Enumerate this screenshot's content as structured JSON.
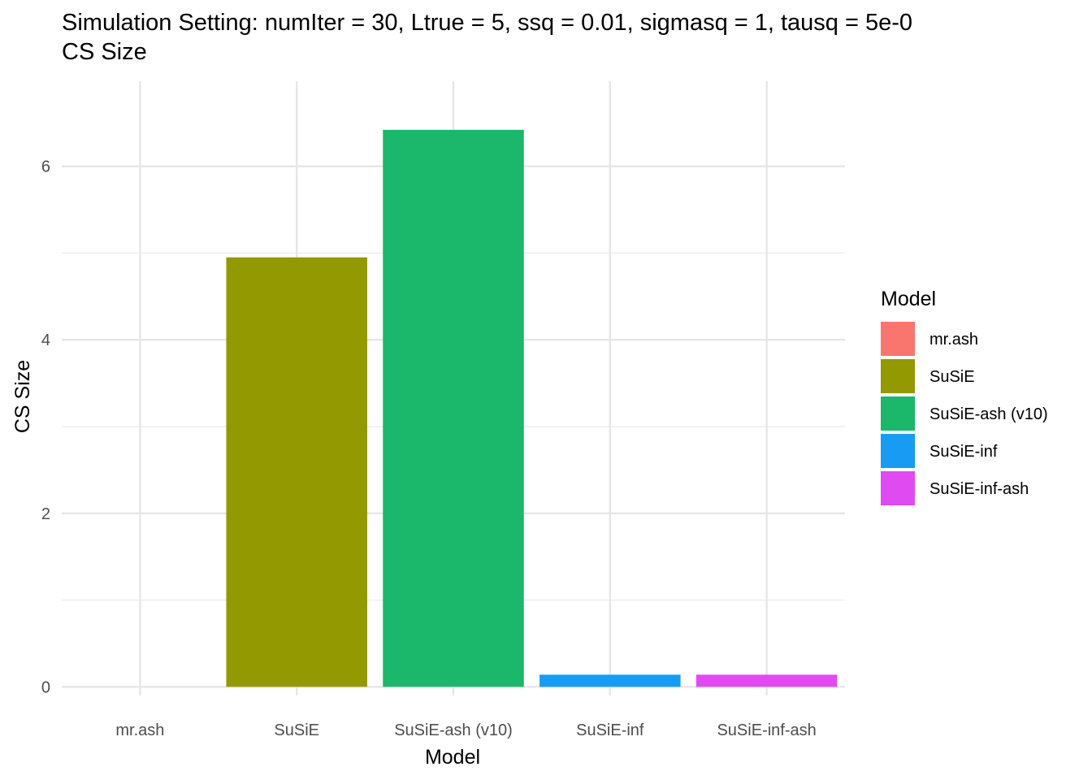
{
  "chart_data": {
    "type": "bar",
    "title": "Simulation Setting: numIter = 30, Ltrue = 5, ssq = 0.01, sigmasq = 1, tausq = 5e-0",
    "subtitle": "CS Size",
    "xlabel": "Model",
    "ylabel": "CS Size",
    "categories": [
      "mr.ash",
      "SuSiE",
      "SuSiE-ash (v10)",
      "SuSiE-inf",
      "SuSiE-inf-ash"
    ],
    "values": [
      0,
      4.95,
      6.42,
      0.14,
      0.14
    ],
    "colors": [
      "#F8766D",
      "#939900",
      "#1BB76A",
      "#169CF3",
      "#DF4BF0"
    ],
    "ylim": [
      -0.1,
      6.98
    ],
    "yticks": [
      0,
      2,
      4,
      6
    ],
    "ytick_labels": [
      "0",
      "2",
      "4",
      "6"
    ],
    "grid": true,
    "legend": {
      "title": "Model",
      "placement": "right",
      "entries": [
        "mr.ash",
        "SuSiE",
        "SuSiE-ash (v10)",
        "SuSiE-inf",
        "SuSiE-inf-ash"
      ]
    }
  }
}
